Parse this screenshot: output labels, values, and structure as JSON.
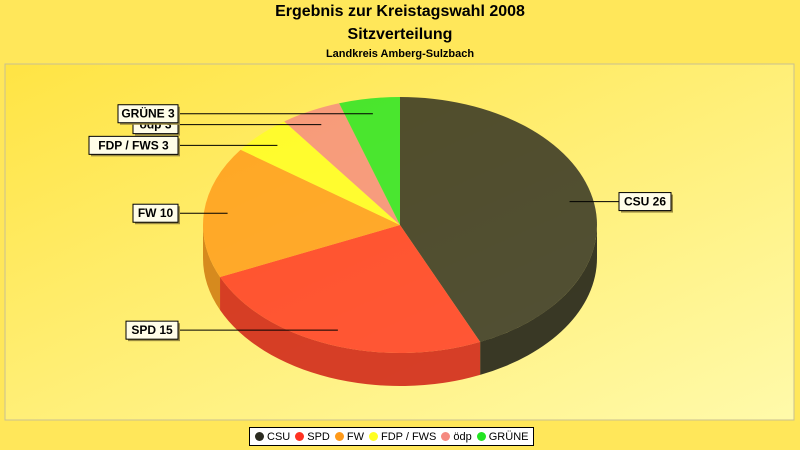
{
  "chart_data": {
    "type": "pie",
    "title": "Ergebnis zur Kreistagswahl 2008",
    "subtitle": "Sitzverteilung",
    "caption": "Landkreis Amberg-Sulzbach",
    "categories": [
      "CSU",
      "SPD",
      "FW",
      "FDP / FWS",
      "ödp",
      "GRÜNE"
    ],
    "values": [
      26,
      15,
      10,
      3,
      3,
      3
    ],
    "data_labels": [
      "CSU 26",
      "SPD 15",
      "FW 10",
      "FDP / FWS 3",
      "ödp 3",
      "GRÜNE 3"
    ],
    "colors": [
      "#2b2b20",
      "#ff3322",
      "#ff9a1a",
      "#ffff22",
      "#f58a80",
      "#22e422"
    ],
    "legend_position": "bottom",
    "style": "3d"
  }
}
